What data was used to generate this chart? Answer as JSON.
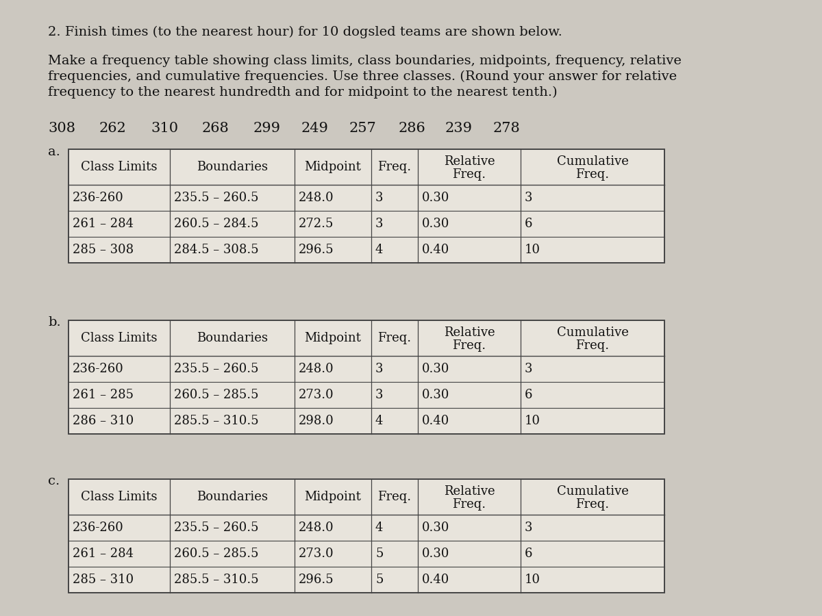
{
  "background_color": "#ccc8c0",
  "title_line1": "2. Finish times (to the nearest hour) for 10 dogsled teams are shown below.",
  "title_line2a": "Make a frequency table showing class limits, class boundaries, midpoints, frequency, relative",
  "title_line2b": "frequencies, and cumulative frequencies. Use three classes. (Round your answer for relative",
  "title_line2c": "frequency to the nearest hundredth and for midpoint to the nearest tenth.)",
  "data_values": [
    "308",
    "262",
    "310",
    "268",
    "299",
    "249",
    "257",
    "286",
    "239",
    "278"
  ],
  "section_labels": [
    "a.",
    "b.",
    "c."
  ],
  "col_headers_line1": [
    "Class Limits",
    "Boundaries",
    "Midpoint",
    "Freq.",
    "Relative",
    "Cumulative"
  ],
  "col_headers_line2": [
    "",
    "",
    "",
    "",
    "Freq.",
    "Freq."
  ],
  "tables": [
    {
      "rows": [
        [
          "236-260",
          "235.5 – 260.5",
          "248.0",
          "3",
          "0.30",
          "3"
        ],
        [
          "261 – 284",
          "260.5 – 284.5",
          "272.5",
          "3",
          "0.30",
          "6"
        ],
        [
          "285 – 308",
          "284.5 – 308.5",
          "296.5",
          "4",
          "0.40",
          "10"
        ]
      ]
    },
    {
      "rows": [
        [
          "236-260",
          "235.5 – 260.5",
          "248.0",
          "3",
          "0.30",
          "3"
        ],
        [
          "261 – 285",
          "260.5 – 285.5",
          "273.0",
          "3",
          "0.30",
          "6"
        ],
        [
          "286 – 310",
          "285.5 – 310.5",
          "298.0",
          "4",
          "0.40",
          "10"
        ]
      ]
    },
    {
      "rows": [
        [
          "236-260",
          "235.5 – 260.5",
          "248.0",
          "4",
          "0.30",
          "3"
        ],
        [
          "261 – 284",
          "260.5 – 285.5",
          "273.0",
          "5",
          "0.30",
          "6"
        ],
        [
          "285 – 310",
          "285.5 – 310.5",
          "296.5",
          "5",
          "0.40",
          "10"
        ]
      ]
    }
  ],
  "table_bg_color": "#e8e4dc",
  "line_color": "#444444",
  "text_color": "#111111",
  "font_size_title": 14,
  "font_size_data_row": 14,
  "font_size_table_header": 13,
  "font_size_table_data": 13
}
